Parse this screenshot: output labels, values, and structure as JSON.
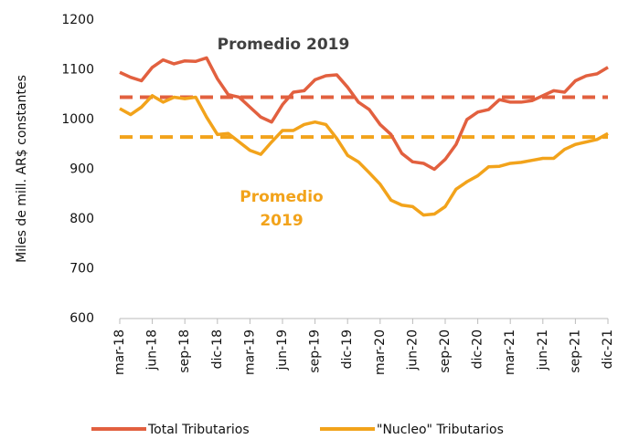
{
  "chart_data": {
    "type": "line",
    "y_label": "Miles de mill. AR$ constantes",
    "categories": [
      "mar-18",
      null,
      null,
      "jun-18",
      null,
      null,
      "sep-18",
      null,
      null,
      "dic-18",
      null,
      null,
      "mar-19",
      null,
      null,
      "jun-19",
      null,
      null,
      "sep-19",
      null,
      null,
      "dic-19",
      null,
      null,
      "mar-20",
      null,
      null,
      "jun-20",
      null,
      null,
      "sep-20",
      null,
      null,
      "dic-20",
      null,
      null,
      "mar-21",
      null,
      null,
      "jun-21",
      null,
      null,
      "sep-21",
      null,
      null,
      "dic-21"
    ],
    "series": [
      {
        "name": "Total Tributarios",
        "color": "#e2603f",
        "values": [
          1095,
          1085,
          1078,
          1105,
          1120,
          1112,
          1118,
          1117,
          1124,
          1082,
          1050,
          1045,
          1025,
          1005,
          995,
          1030,
          1055,
          1058,
          1080,
          1088,
          1090,
          1065,
          1035,
          1020,
          990,
          970,
          932,
          915,
          912,
          900,
          920,
          950,
          1000,
          1015,
          1020,
          1040,
          1035,
          1035,
          1038,
          1048,
          1058,
          1055,
          1078,
          1088,
          1092,
          1105
        ]
      },
      {
        "name": "\"Nucleo\" Tributarios",
        "color": "#f2a31b",
        "values": [
          1022,
          1010,
          1025,
          1048,
          1035,
          1045,
          1042,
          1045,
          1005,
          970,
          972,
          955,
          938,
          930,
          955,
          978,
          978,
          990,
          995,
          990,
          962,
          928,
          915,
          893,
          870,
          838,
          828,
          825,
          808,
          810,
          825,
          860,
          875,
          887,
          905,
          906,
          912,
          914,
          918,
          922,
          922,
          940,
          950,
          955,
          960,
          972
        ]
      }
    ],
    "reference_lines": [
      {
        "value": 1045,
        "color": "#e2603f"
      },
      {
        "value": 965,
        "color": "#f2a31b"
      }
    ],
    "annotations": [
      {
        "text": "Promedio 2019",
        "color": "#404040"
      },
      {
        "text": "Promedio 2019",
        "color": "#f2a31b"
      }
    ],
    "ylim": [
      600,
      1200
    ],
    "yticks": [
      600,
      700,
      800,
      900,
      1000,
      1100,
      1200
    ],
    "ytick_labels_note_free": null
  }
}
